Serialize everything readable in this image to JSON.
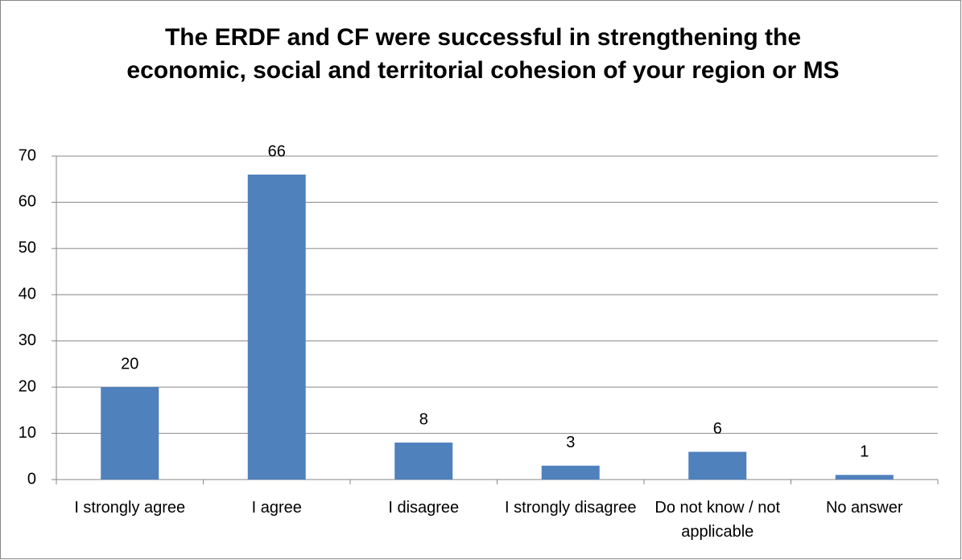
{
  "chart_data": {
    "type": "bar",
    "title": "The ERDF and CF were successful in strengthening the economic, social and territorial cohesion of your region or MS",
    "categories": [
      "I strongly agree",
      "I agree",
      "I disagree",
      "I strongly disagree",
      "Do not know / not applicable",
      "No answer"
    ],
    "values": [
      20,
      66,
      8,
      3,
      6,
      1
    ],
    "color": "#4f81bd",
    "ylim": [
      0,
      70
    ],
    "yticks": [
      0,
      10,
      20,
      30,
      40,
      50,
      60,
      70
    ],
    "grid": true
  }
}
